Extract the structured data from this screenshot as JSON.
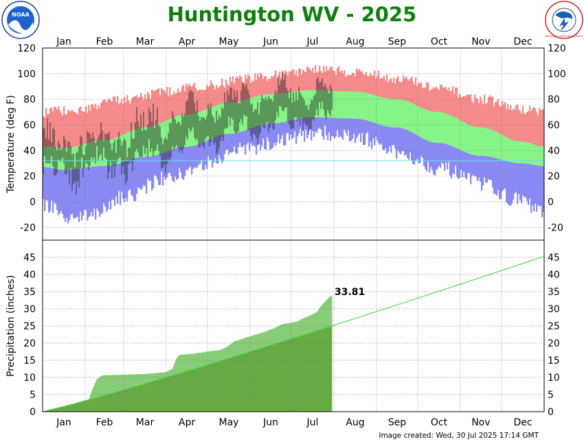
{
  "title": "Huntington WV - 2025",
  "footer": "Image created: Wed, 30 Jul 2025 17:14 GMT",
  "logos": {
    "left": "NOAA",
    "right": "NATIONAL WEATHER SERVICE"
  },
  "colors": {
    "record_high": "#f48a8a",
    "normal_band": "#86f486",
    "record_low": "#8a8af4",
    "observed": "#222222",
    "precip_observed": "#88cc77",
    "precip_normal": "#66aa44",
    "normal_precip_line": "#44dd44",
    "title": "#0f800f"
  },
  "chart_data": [
    {
      "type": "bar",
      "name": "temperature",
      "ylabel": "Temperature (deg F)",
      "ylim": [
        -30,
        120
      ],
      "yticks": [
        -20,
        0,
        20,
        40,
        60,
        80,
        100,
        120
      ],
      "months": [
        "Jan",
        "Feb",
        "Mar",
        "Apr",
        "May",
        "Jun",
        "Jul",
        "Aug",
        "Sep",
        "Oct",
        "Nov",
        "Dec"
      ],
      "grid": true,
      "days_in_year": 365,
      "observed_through_day": 211,
      "freezing_line": 32,
      "normal_high_anchors": [
        [
          1,
          43
        ],
        [
          16,
          42
        ],
        [
          46,
          48
        ],
        [
          75,
          58
        ],
        [
          105,
          68
        ],
        [
          136,
          77
        ],
        [
          166,
          84
        ],
        [
          196,
          87
        ],
        [
          227,
          86
        ],
        [
          258,
          80
        ],
        [
          288,
          70
        ],
        [
          319,
          58
        ],
        [
          349,
          47
        ],
        [
          365,
          43
        ]
      ],
      "normal_low_anchors": [
        [
          1,
          27
        ],
        [
          16,
          25
        ],
        [
          46,
          28
        ],
        [
          75,
          35
        ],
        [
          105,
          43
        ],
        [
          136,
          53
        ],
        [
          166,
          61
        ],
        [
          196,
          66
        ],
        [
          227,
          65
        ],
        [
          258,
          58
        ],
        [
          288,
          46
        ],
        [
          319,
          36
        ],
        [
          349,
          30
        ],
        [
          365,
          28
        ]
      ],
      "record_high_anchors": [
        [
          1,
          70
        ],
        [
          30,
          72
        ],
        [
          60,
          80
        ],
        [
          90,
          86
        ],
        [
          120,
          91
        ],
        [
          150,
          96
        ],
        [
          180,
          100
        ],
        [
          200,
          103
        ],
        [
          230,
          101
        ],
        [
          260,
          96
        ],
        [
          290,
          88
        ],
        [
          320,
          80
        ],
        [
          350,
          72
        ],
        [
          365,
          71
        ]
      ],
      "record_low_anchors": [
        [
          1,
          -2
        ],
        [
          20,
          -12
        ],
        [
          40,
          -8
        ],
        [
          60,
          4
        ],
        [
          90,
          18
        ],
        [
          120,
          30
        ],
        [
          150,
          42
        ],
        [
          180,
          50
        ],
        [
          200,
          54
        ],
        [
          230,
          50
        ],
        [
          260,
          38
        ],
        [
          290,
          26
        ],
        [
          320,
          14
        ],
        [
          345,
          2
        ],
        [
          365,
          -8
        ]
      ]
    },
    {
      "type": "area",
      "name": "precipitation",
      "ylabel": "Precipitation (inches)",
      "ylim": [
        0,
        50
      ],
      "yticks": [
        0,
        5,
        10,
        15,
        20,
        25,
        30,
        35,
        40,
        45
      ],
      "months": [
        "Jan",
        "Feb",
        "Mar",
        "Apr",
        "May",
        "Jun",
        "Jul",
        "Aug",
        "Sep",
        "Oct",
        "Nov",
        "Dec"
      ],
      "grid": true,
      "observed_through_day": 211,
      "observed_total_label": "33.81",
      "observed_total": 33.81,
      "normal_annual_total": 45.2,
      "observed_cumulative": [
        [
          1,
          0
        ],
        [
          5,
          0.6
        ],
        [
          10,
          1.0
        ],
        [
          20,
          1.6
        ],
        [
          30,
          2.3
        ],
        [
          34,
          3.5
        ],
        [
          37,
          6.8
        ],
        [
          40,
          9.5
        ],
        [
          44,
          10.6
        ],
        [
          60,
          10.8
        ],
        [
          75,
          11.0
        ],
        [
          90,
          11.5
        ],
        [
          95,
          12.5
        ],
        [
          98,
          15.6
        ],
        [
          100,
          16.6
        ],
        [
          110,
          16.9
        ],
        [
          120,
          17.5
        ],
        [
          130,
          18.0
        ],
        [
          135,
          19.0
        ],
        [
          140,
          20.5
        ],
        [
          150,
          21.8
        ],
        [
          160,
          23.0
        ],
        [
          170,
          24.5
        ],
        [
          175,
          25.5
        ],
        [
          185,
          26.2
        ],
        [
          190,
          27.2
        ],
        [
          195,
          28.0
        ],
        [
          200,
          29.0
        ],
        [
          203,
          30.8
        ],
        [
          207,
          32.5
        ],
        [
          209,
          33.4
        ],
        [
          211,
          33.81
        ]
      ]
    }
  ]
}
